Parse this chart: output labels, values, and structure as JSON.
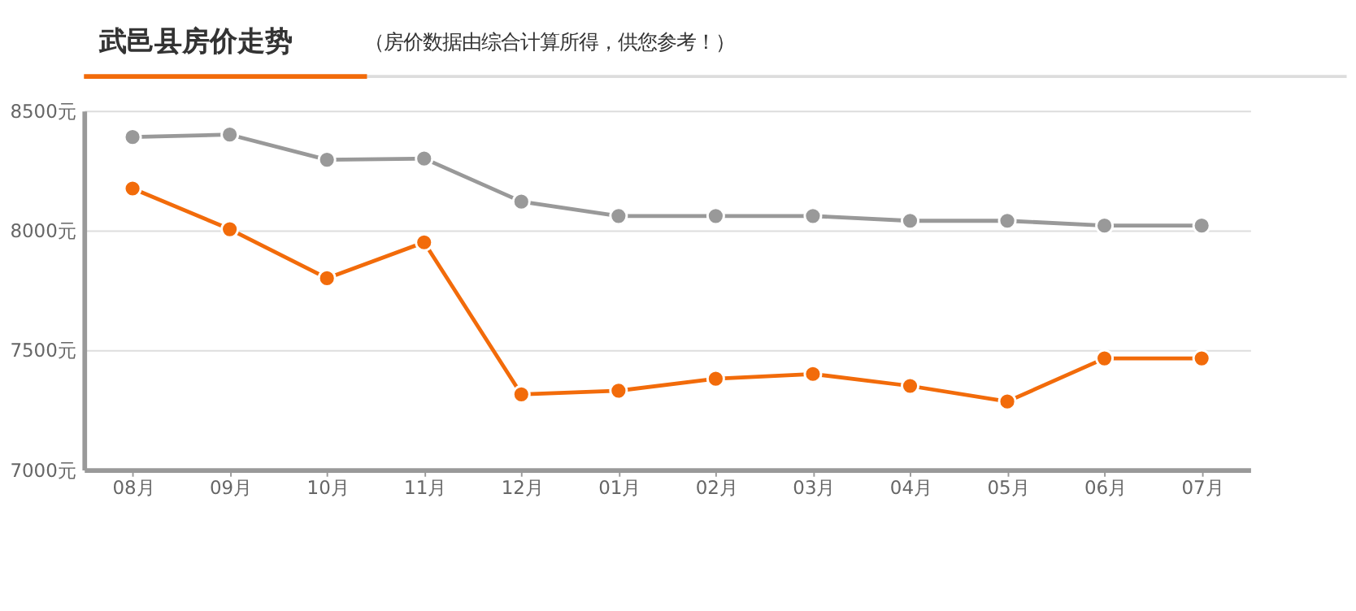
{
  "chart_data": {
    "type": "line",
    "title": "武邑县房价走势",
    "subtitle": "（房价数据由综合计算所得，供您参考！）",
    "categories": [
      "08月",
      "09月",
      "10月",
      "11月",
      "12月",
      "01月",
      "02月",
      "03月",
      "04月",
      "05月",
      "06月",
      "07月"
    ],
    "series": [
      {
        "color": "#999999",
        "values": [
          8390,
          8400,
          8295,
          8300,
          8120,
          8060,
          8060,
          8060,
          8040,
          8040,
          8020,
          8020
        ]
      },
      {
        "color": "#f26b0a",
        "values": [
          8175,
          8005,
          7800,
          7950,
          7315,
          7330,
          7380,
          7400,
          7350,
          7285,
          7465,
          7465
        ]
      }
    ],
    "ylim": [
      7000,
      8500
    ],
    "yticks": [
      {
        "value": 7000,
        "label": "7000元"
      },
      {
        "value": 7500,
        "label": "7500元"
      },
      {
        "value": 8000,
        "label": "8000元"
      },
      {
        "value": 8500,
        "label": "8500元"
      }
    ],
    "grid": "y",
    "marker": "circle",
    "line_style": "solid",
    "legend": false
  }
}
